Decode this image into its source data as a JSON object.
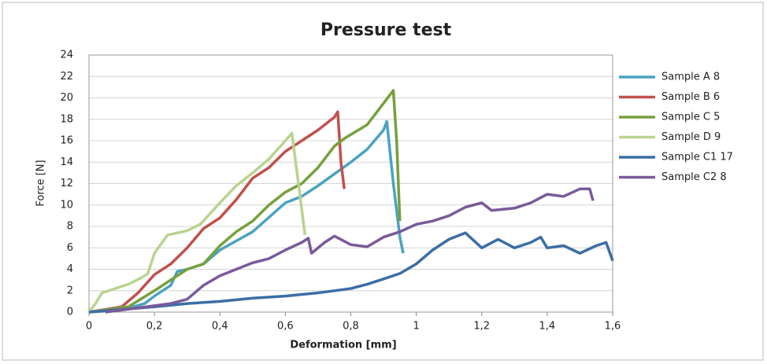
{
  "chart_data": {
    "type": "line",
    "title": "Pressure test",
    "x_label": "Deformation [mm]",
    "y_label": "Force [N]",
    "xlim": [
      0,
      1.6
    ],
    "ylim": [
      0,
      24
    ],
    "xticks": [
      0,
      {
        "value": 0.2,
        "label": "0,2"
      },
      {
        "value": 0.4,
        "label": "0,4"
      },
      {
        "value": 0.6,
        "label": "0,6"
      },
      {
        "value": 0.8,
        "label": "0,8"
      },
      1,
      {
        "value": 1.2,
        "label": "1,2"
      },
      {
        "value": 1.4,
        "label": "1,4"
      },
      {
        "value": 1.6,
        "label": "1,6"
      }
    ],
    "yticks": [
      0,
      2,
      4,
      6,
      8,
      10,
      12,
      14,
      16,
      18,
      20,
      22,
      24
    ],
    "grid": true,
    "legend": "right",
    "series": [
      {
        "name": "Sample A  8",
        "color": "#4aa3c0",
        "x": [
          0,
          0.1,
          0.17,
          0.2,
          0.25,
          0.27,
          0.3,
          0.35,
          0.4,
          0.5,
          0.6,
          0.65,
          0.7,
          0.8,
          0.85,
          0.9,
          0.91,
          0.93,
          0.95,
          0.96
        ],
        "values": [
          0,
          0.2,
          0.8,
          1.5,
          2.5,
          3.8,
          4,
          4.5,
          5.8,
          7.5,
          10.2,
          10.8,
          11.8,
          14,
          15.2,
          17,
          17.8,
          12,
          7,
          5.5
        ]
      },
      {
        "name": "Sample B  6",
        "color": "#c0504d",
        "x": [
          0,
          0.1,
          0.15,
          0.2,
          0.25,
          0.3,
          0.35,
          0.4,
          0.45,
          0.5,
          0.55,
          0.6,
          0.65,
          0.7,
          0.75,
          0.76,
          0.77,
          0.78
        ],
        "values": [
          0,
          0.5,
          1.8,
          3.5,
          4.5,
          6,
          7.8,
          8.8,
          10.5,
          12.5,
          13.5,
          15,
          16,
          17,
          18.2,
          18.7,
          14,
          11.5
        ]
      },
      {
        "name": "Sample C  5",
        "color": "#77a03c",
        "x": [
          0,
          0.12,
          0.2,
          0.25,
          0.3,
          0.35,
          0.4,
          0.45,
          0.5,
          0.55,
          0.6,
          0.65,
          0.7,
          0.75,
          0.78,
          0.85,
          0.9,
          0.93,
          0.94,
          0.95
        ],
        "values": [
          0,
          0.5,
          2,
          3,
          4,
          4.5,
          6.2,
          7.5,
          8.5,
          10,
          11.2,
          12,
          13.5,
          15.5,
          16.2,
          17.5,
          19.5,
          20.7,
          16,
          8.5
        ]
      },
      {
        "name": "Sample D  9",
        "color": "#b9d38f",
        "x": [
          0,
          0.02,
          0.04,
          0.08,
          0.12,
          0.16,
          0.18,
          0.2,
          0.24,
          0.3,
          0.34,
          0.4,
          0.45,
          0.5,
          0.55,
          0.6,
          0.62,
          0.64,
          0.66
        ],
        "values": [
          0,
          0.8,
          1.8,
          2.2,
          2.6,
          3.2,
          3.6,
          5.5,
          7.2,
          7.6,
          8.2,
          10.2,
          11.8,
          13,
          14.3,
          16,
          16.7,
          12,
          7.2
        ]
      },
      {
        "name": "Sample C1  17",
        "color": "#3b6ea5",
        "x": [
          0,
          0.2,
          0.3,
          0.4,
          0.5,
          0.6,
          0.7,
          0.75,
          0.8,
          0.85,
          0.9,
          0.95,
          1,
          1.05,
          1.1,
          1.15,
          1.2,
          1.25,
          1.3,
          1.35,
          1.38,
          1.4,
          1.45,
          1.5,
          1.55,
          1.58,
          1.6
        ],
        "values": [
          0,
          0.5,
          0.8,
          1,
          1.3,
          1.5,
          1.8,
          2,
          2.2,
          2.6,
          3.1,
          3.6,
          4.5,
          5.8,
          6.8,
          7.4,
          6,
          6.8,
          6,
          6.5,
          7,
          6,
          6.2,
          5.5,
          6.2,
          6.5,
          4.8
        ]
      },
      {
        "name": "Sample C2  8",
        "color": "#7a5a9a",
        "x": [
          0.05,
          0.15,
          0.25,
          0.3,
          0.35,
          0.4,
          0.45,
          0.5,
          0.55,
          0.6,
          0.65,
          0.67,
          0.68,
          0.72,
          0.75,
          0.8,
          0.85,
          0.9,
          0.95,
          1,
          1.05,
          1.1,
          1.15,
          1.2,
          1.23,
          1.3,
          1.35,
          1.4,
          1.45,
          1.5,
          1.53,
          1.54
        ],
        "values": [
          0,
          0.4,
          0.8,
          1.2,
          2.5,
          3.4,
          4,
          4.6,
          5,
          5.8,
          6.5,
          6.9,
          5.5,
          6.5,
          7.1,
          6.3,
          6.1,
          7,
          7.5,
          8.2,
          8.5,
          9,
          9.8,
          10.2,
          9.5,
          9.7,
          10.2,
          11,
          10.8,
          11.5,
          11.5,
          10.4
        ]
      }
    ]
  }
}
